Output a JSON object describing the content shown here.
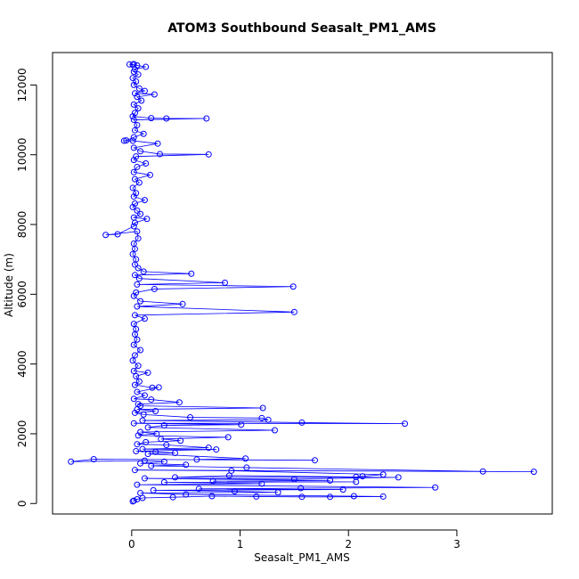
{
  "chart_data": {
    "type": "line",
    "title": "ATOM3 Southbound Seasalt_PM1_AMS",
    "xlabel": "Seasalt_PM1_AMS",
    "ylabel": "Altitude (m)",
    "xlim": [
      -0.73,
      3.88
    ],
    "ylim": [
      -300,
      12930
    ],
    "x_ticks": [
      0,
      1,
      2,
      3
    ],
    "y_ticks": [
      0,
      2000,
      4000,
      6000,
      8000,
      10000,
      12000
    ],
    "grid": false,
    "legend": "none",
    "series": [
      {
        "marker": "open-circle",
        "color": "#0000ff",
        "points": [
          [
            0.02,
            12600
          ],
          [
            0.01,
            12580
          ],
          [
            -0.02,
            12590
          ],
          [
            0.05,
            12560
          ],
          [
            0.13,
            12520
          ],
          [
            0.03,
            12450
          ],
          [
            0.02,
            12380
          ],
          [
            0.06,
            12300
          ],
          [
            0.01,
            12200
          ],
          [
            0.04,
            12100
          ],
          [
            0.02,
            12000
          ],
          [
            0.07,
            11900
          ],
          [
            0.12,
            11830
          ],
          [
            0.03,
            11760
          ],
          [
            0.21,
            11730
          ],
          [
            0.05,
            11660
          ],
          [
            0.09,
            11550
          ],
          [
            0.02,
            11440
          ],
          [
            0.06,
            11330
          ],
          [
            0.03,
            11200
          ],
          [
            0.01,
            11100
          ],
          [
            0.18,
            11050
          ],
          [
            0.32,
            11040
          ],
          [
            0.69,
            11040
          ],
          [
            0.02,
            11000
          ],
          [
            0.05,
            10850
          ],
          [
            0.03,
            10700
          ],
          [
            0.11,
            10600
          ],
          [
            0.02,
            10500
          ],
          [
            -0.05,
            10410
          ],
          [
            -0.07,
            10400
          ],
          [
            0.01,
            10400
          ],
          [
            0.24,
            10320
          ],
          [
            0.02,
            10200
          ],
          [
            0.08,
            10100
          ],
          [
            0.26,
            10020
          ],
          [
            0.71,
            10010
          ],
          [
            0.04,
            9950
          ],
          [
            0.02,
            9850
          ],
          [
            0.13,
            9750
          ],
          [
            0.05,
            9650
          ],
          [
            0.02,
            9500
          ],
          [
            0.17,
            9420
          ],
          [
            0.03,
            9300
          ],
          [
            0.07,
            9200
          ],
          [
            0.01,
            9050
          ],
          [
            0.04,
            8900
          ],
          [
            0.02,
            8800
          ],
          [
            0.12,
            8700
          ],
          [
            0.03,
            8600
          ],
          [
            0.01,
            8500
          ],
          [
            0.05,
            8400
          ],
          [
            0.08,
            8300
          ],
          [
            0.02,
            8200
          ],
          [
            0.14,
            8160
          ],
          [
            0.03,
            8050
          ],
          [
            0.02,
            7950
          ],
          [
            -0.13,
            7720
          ],
          [
            -0.24,
            7700
          ],
          [
            0.05,
            7800
          ],
          [
            0.06,
            7600
          ],
          [
            0.02,
            7450
          ],
          [
            0.03,
            7300
          ],
          [
            0.01,
            7150
          ],
          [
            0.04,
            7000
          ],
          [
            0.03,
            6850
          ],
          [
            0.06,
            6750
          ],
          [
            0.11,
            6650
          ],
          [
            0.55,
            6590
          ],
          [
            0.03,
            6550
          ],
          [
            0.07,
            6450
          ],
          [
            0.86,
            6330
          ],
          [
            0.05,
            6280
          ],
          [
            1.49,
            6220
          ],
          [
            0.21,
            6150
          ],
          [
            0.04,
            6050
          ],
          [
            0.02,
            5950
          ],
          [
            0.08,
            5800
          ],
          [
            0.47,
            5720
          ],
          [
            0.05,
            5650
          ],
          [
            1.5,
            5490
          ],
          [
            0.03,
            5400
          ],
          [
            0.12,
            5300
          ],
          [
            0.02,
            5150
          ],
          [
            0.04,
            5000
          ],
          [
            0.03,
            4850
          ],
          [
            0.05,
            4700
          ],
          [
            0.02,
            4550
          ],
          [
            0.08,
            4400
          ],
          [
            0.03,
            4250
          ],
          [
            0.01,
            4100
          ],
          [
            0.06,
            3950
          ],
          [
            0.02,
            3800
          ],
          [
            0.15,
            3750
          ],
          [
            0.04,
            3650
          ],
          [
            0.07,
            3500
          ],
          [
            0.03,
            3400
          ],
          [
            0.19,
            3320
          ],
          [
            0.25,
            3330
          ],
          [
            0.05,
            3200
          ],
          [
            0.12,
            3100
          ],
          [
            0.02,
            3000
          ],
          [
            0.18,
            2980
          ],
          [
            0.44,
            2900
          ],
          [
            0.06,
            2850
          ],
          [
            0.08,
            2800
          ],
          [
            1.21,
            2740
          ],
          [
            0.05,
            2700
          ],
          [
            0.22,
            2650
          ],
          [
            0.03,
            2600
          ],
          [
            0.11,
            2550
          ],
          [
            0.54,
            2470
          ],
          [
            1.2,
            2450
          ],
          [
            1.26,
            2400
          ],
          [
            0.1,
            2380
          ],
          [
            1.57,
            2320
          ],
          [
            2.52,
            2290
          ],
          [
            0.02,
            2300
          ],
          [
            1.01,
            2260
          ],
          [
            0.3,
            2240
          ],
          [
            0.15,
            2180
          ],
          [
            1.32,
            2100
          ],
          [
            0.08,
            2050
          ],
          [
            0.23,
            2000
          ],
          [
            0.06,
            1950
          ],
          [
            0.89,
            1900
          ],
          [
            0.27,
            1850
          ],
          [
            0.45,
            1800
          ],
          [
            0.13,
            1760
          ],
          [
            0.05,
            1700
          ],
          [
            0.32,
            1680
          ],
          [
            0.71,
            1600
          ],
          [
            0.1,
            1560
          ],
          [
            0.78,
            1550
          ],
          [
            0.04,
            1500
          ],
          [
            0.22,
            1480
          ],
          [
            0.4,
            1450
          ],
          [
            0.15,
            1420
          ],
          [
            1.05,
            1290
          ],
          [
            0.6,
            1260
          ],
          [
            1.69,
            1240
          ],
          [
            -0.35,
            1270
          ],
          [
            -0.56,
            1200
          ],
          [
            0.12,
            1230
          ],
          [
            0.3,
            1200
          ],
          [
            0.08,
            1150
          ],
          [
            0.5,
            1110
          ],
          [
            0.18,
            1080
          ],
          [
            1.06,
            1030
          ],
          [
            3.24,
            920
          ],
          [
            3.71,
            910
          ],
          [
            0.03,
            960
          ],
          [
            0.92,
            940
          ],
          [
            2.32,
            830
          ],
          [
            2.13,
            780
          ],
          [
            2.07,
            760
          ],
          [
            0.9,
            800
          ],
          [
            0.4,
            750
          ],
          [
            2.46,
            750
          ],
          [
            1.5,
            700
          ],
          [
            0.12,
            720
          ],
          [
            1.83,
            660
          ],
          [
            0.75,
            640
          ],
          [
            2.07,
            620
          ],
          [
            0.3,
            610
          ],
          [
            1.2,
            570
          ],
          [
            0.05,
            540
          ],
          [
            2.8,
            460
          ],
          [
            1.56,
            440
          ],
          [
            0.62,
            420
          ],
          [
            1.95,
            400
          ],
          [
            0.2,
            380
          ],
          [
            0.95,
            350
          ],
          [
            1.35,
            320
          ],
          [
            0.08,
            300
          ],
          [
            0.5,
            260
          ],
          [
            2.05,
            210
          ],
          [
            2.32,
            200
          ],
          [
            1.83,
            190
          ],
          [
            1.57,
            190
          ],
          [
            1.15,
            200
          ],
          [
            0.74,
            210
          ],
          [
            0.38,
            180
          ],
          [
            0.1,
            160
          ],
          [
            0.05,
            120
          ],
          [
            0.02,
            80
          ],
          [
            0.01,
            60
          ]
        ]
      }
    ]
  }
}
